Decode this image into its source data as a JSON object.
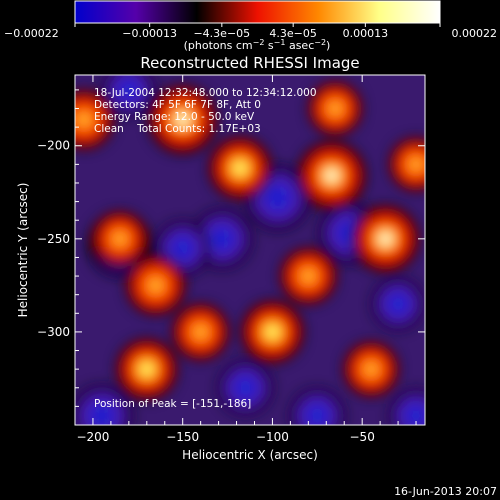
{
  "chart_data": {
    "type": "heatmap",
    "title": "Reconstructed RHESSI Image",
    "xlabel": "Heliocentric X (arcsec)",
    "ylabel": "Heliocentric Y (arcsec)",
    "xlim": [
      -210,
      -15
    ],
    "ylim": [
      -350,
      -162
    ],
    "x_ticks": [
      -200,
      -150,
      -100,
      -50
    ],
    "x_tick_labels": [
      "−200",
      "−150",
      "−100",
      "−50"
    ],
    "y_ticks": [
      -200,
      -250,
      -300
    ],
    "y_tick_labels": [
      "−200",
      "−250",
      "−300"
    ],
    "colorbar": {
      "range": [
        -0.00022,
        0.00022
      ],
      "tick_values": [
        -0.00022,
        -0.00013,
        -4.3e-05,
        4.3e-05,
        0.00013,
        0.00022
      ],
      "tick_labels": [
        "−0.00022",
        "−0.00013",
        "−4.3e−05",
        "4.3e−05",
        "0.00013",
        "0.00022"
      ],
      "unit_prefix": "(photons cm",
      "unit_exp1": "−2",
      "unit_mid": " s",
      "unit_exp2": "−1",
      "unit_suffix": " asec",
      "unit_exp3": "−2",
      "unit_end": ")",
      "colormap": [
        "#0000cc",
        "#5500aa",
        "#000000",
        "#ee1100",
        "#ff8800",
        "#ffff88",
        "#ffffff"
      ]
    },
    "info_lines": [
      "18-Jul-2004 12:32:48.000 to 12:34:12.000",
      "Detectors: 4F 5F 6F 7F 8F, Att 0",
      "Energy Range: 12.0 - 50.0 keV",
      "Clean    Total Counts: 1.17E+03"
    ],
    "peak_label": "Position of Peak = [-151,-186]",
    "peak": [
      -151,
      -186
    ],
    "bright_sources": [
      {
        "x": -150,
        "y": -186,
        "v": 1.0
      },
      {
        "x": -67,
        "y": -216,
        "v": 1.0
      },
      {
        "x": -37,
        "y": -250,
        "v": 0.95
      },
      {
        "x": -118,
        "y": -212,
        "v": 0.8
      },
      {
        "x": -100,
        "y": -300,
        "v": 0.8
      },
      {
        "x": -170,
        "y": -320,
        "v": 0.75
      },
      {
        "x": -205,
        "y": -186,
        "v": 0.7
      },
      {
        "x": -165,
        "y": -275,
        "v": 0.7
      },
      {
        "x": -140,
        "y": -300,
        "v": 0.6
      },
      {
        "x": -80,
        "y": -270,
        "v": 0.6
      },
      {
        "x": -45,
        "y": -320,
        "v": 0.55
      },
      {
        "x": -65,
        "y": -180,
        "v": 0.5
      },
      {
        "x": -185,
        "y": -250,
        "v": 0.55
      },
      {
        "x": -20,
        "y": -210,
        "v": 0.5
      }
    ],
    "dim_sources": [
      {
        "x": -185,
        "y": -253,
        "v": -1.0
      },
      {
        "x": -97,
        "y": -228,
        "v": -1.0
      },
      {
        "x": -57,
        "y": -247,
        "v": -0.85
      },
      {
        "x": -128,
        "y": -250,
        "v": -0.8
      },
      {
        "x": -195,
        "y": -345,
        "v": -0.85
      },
      {
        "x": -150,
        "y": -255,
        "v": -0.6
      },
      {
        "x": -115,
        "y": -330,
        "v": -0.6
      },
      {
        "x": -75,
        "y": -345,
        "v": -0.6
      },
      {
        "x": -20,
        "y": -345,
        "v": -0.55
      },
      {
        "x": -180,
        "y": -170,
        "v": -0.5
      },
      {
        "x": -30,
        "y": -285,
        "v": -0.5
      }
    ]
  },
  "footer_date": "16-Jun-2013 20:07"
}
